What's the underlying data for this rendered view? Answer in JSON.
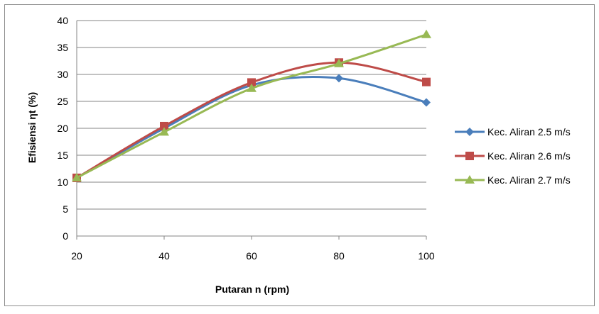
{
  "chart_data": {
    "type": "line",
    "title": "",
    "xlabel": "Putaran n (rpm)",
    "ylabel": "Efisiensi ηt (%)",
    "x": [
      20,
      40,
      60,
      80,
      100
    ],
    "x_ticks": [
      "20",
      "40",
      "60",
      "80",
      "100"
    ],
    "ylim": [
      0,
      40
    ],
    "y_ticks": [
      "0",
      "5",
      "10",
      "15",
      "20",
      "25",
      "30",
      "35",
      "40"
    ],
    "grid": "horizontal",
    "smooth": true,
    "legend_position": "right",
    "series": [
      {
        "name": "Kec. Aliran 2.5 m/s",
        "color": "#4a7ebb",
        "marker": "diamond",
        "values": [
          10.8,
          20.0,
          28.0,
          29.3,
          24.8
        ]
      },
      {
        "name": "Kec. Aliran 2.6 m/s",
        "color": "#be4b48",
        "marker": "square",
        "values": [
          10.8,
          20.4,
          28.5,
          32.2,
          28.6
        ]
      },
      {
        "name": "Kec. Aliran 2.7 m/s",
        "color": "#98b954",
        "marker": "triangle",
        "values": [
          10.8,
          19.3,
          27.4,
          32.0,
          37.4
        ]
      }
    ]
  }
}
